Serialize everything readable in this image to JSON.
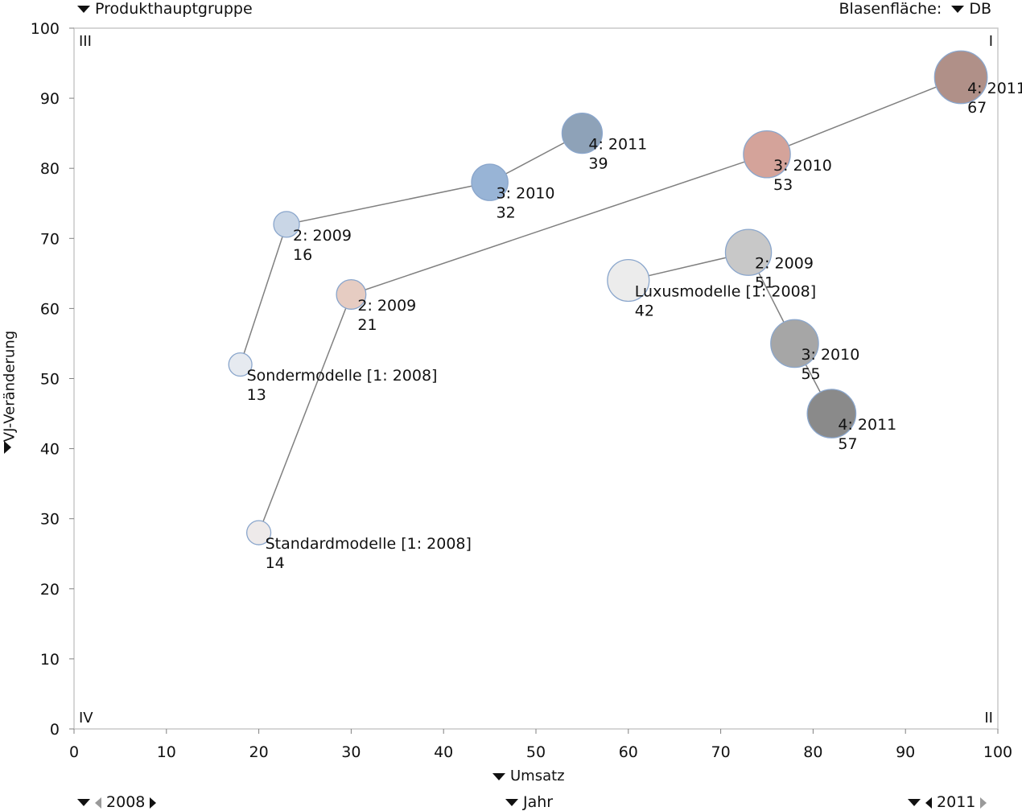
{
  "controls": {
    "series_dim": "Produkthauptgruppe",
    "bubble_label": "Blasenfläche:",
    "bubble_measure": "DB",
    "x_measure": "Umsatz",
    "y_measure": "VJ-Veränderung",
    "time_dim": "Jahr",
    "time_start": "2008",
    "time_end": "2011"
  },
  "colors": {
    "frame": "#c8c8c8",
    "arrow": "#808080",
    "bubble_stroke": "#8aa6cc"
  },
  "chart_data": {
    "type": "scatter",
    "subtype": "bubble-trail",
    "xlabel": "Umsatz",
    "ylabel": "VJ-Veränderung",
    "xlim": [
      0,
      100
    ],
    "ylim": [
      0,
      100
    ],
    "xticks": [
      0,
      10,
      20,
      30,
      40,
      50,
      60,
      70,
      80,
      90,
      100
    ],
    "yticks": [
      0,
      10,
      20,
      30,
      40,
      50,
      60,
      70,
      80,
      90,
      100
    ],
    "quadrants": {
      "top_left": "III",
      "top_right": "I",
      "bottom_left": "IV",
      "bottom_right": "II"
    },
    "grid": false,
    "series": [
      {
        "name": "Sondermodelle",
        "points": [
          {
            "label": "Sondermodelle [1: 2008]",
            "x": 18,
            "y": 52,
            "size": 13,
            "color": "#e6eaf0"
          },
          {
            "label": "2: 2009",
            "x": 23,
            "y": 72,
            "size": 16,
            "color": "#c9d6e6"
          },
          {
            "label": "3: 2010",
            "x": 45,
            "y": 78,
            "size": 32,
            "color": "#98b4d6"
          },
          {
            "label": "4: 2011",
            "x": 55,
            "y": 85,
            "size": 39,
            "color": "#8ea2b8"
          }
        ]
      },
      {
        "name": "Standardmodelle",
        "points": [
          {
            "label": "Standardmodelle [1: 2008]",
            "x": 20,
            "y": 28,
            "size": 14,
            "color": "#eeeaea"
          },
          {
            "label": "2: 2009",
            "x": 30,
            "y": 62,
            "size": 21,
            "color": "#e6ccc2"
          },
          {
            "label": "3: 2010",
            "x": 75,
            "y": 82,
            "size": 53,
            "color": "#d4a39a"
          },
          {
            "label": "4: 2011",
            "x": 96,
            "y": 93,
            "size": 67,
            "color": "#b09088"
          }
        ]
      },
      {
        "name": "Luxusmodelle",
        "points": [
          {
            "label": "Luxusmodelle [1: 2008]",
            "x": 60,
            "y": 64,
            "size": 42,
            "color": "#ececec"
          },
          {
            "label": "2: 2009",
            "x": 73,
            "y": 68,
            "size": 51,
            "color": "#c8c8c8"
          },
          {
            "label": "3: 2010",
            "x": 78,
            "y": 55,
            "size": 55,
            "color": "#a6a6a6"
          },
          {
            "label": "4: 2011",
            "x": 82,
            "y": 45,
            "size": 57,
            "color": "#8a8a8a"
          }
        ]
      }
    ]
  }
}
